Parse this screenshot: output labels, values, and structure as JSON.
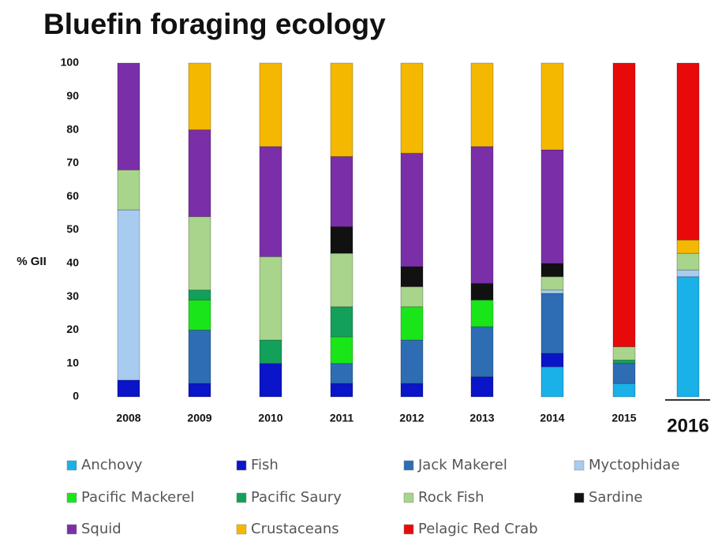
{
  "chart_data": {
    "type": "stacked_bar",
    "title": "Bluefin foraging ecology",
    "y_label": "% GII",
    "categories": [
      "2008",
      "2009",
      "2010",
      "2011",
      "2012",
      "2013",
      "2014",
      "2015",
      "2016"
    ],
    "ylim": [
      0,
      100
    ],
    "yticks": [
      0,
      10,
      20,
      30,
      40,
      50,
      60,
      70,
      80,
      90,
      100
    ],
    "series": [
      {
        "name": "Anchovy",
        "color": "#1ab0e8",
        "values": [
          0,
          0,
          0,
          0,
          0,
          0,
          9,
          4,
          36
        ]
      },
      {
        "name": "Fish",
        "color": "#0a14c8",
        "values": [
          5,
          4,
          10,
          4,
          4,
          6,
          4,
          0,
          0
        ]
      },
      {
        "name": "Jack Makerel",
        "color": "#2e6db4",
        "values": [
          0,
          16,
          0,
          6,
          13,
          15,
          18,
          6,
          0
        ]
      },
      {
        "name": "Myctophidae",
        "color": "#a8ccf0",
        "values": [
          51,
          0,
          0,
          0,
          0,
          0,
          1,
          0,
          2
        ]
      },
      {
        "name": "Pacific Mackerel",
        "color": "#19e619",
        "values": [
          0,
          9,
          0,
          8,
          10,
          8,
          0,
          0,
          0
        ]
      },
      {
        "name": "Pacific Saury",
        "color": "#13a05a",
        "values": [
          0,
          3,
          7,
          9,
          0,
          0,
          0,
          1,
          0
        ]
      },
      {
        "name": "Rock Fish",
        "color": "#a8d48c",
        "values": [
          12,
          22,
          25,
          16,
          6,
          0,
          4,
          4,
          5
        ]
      },
      {
        "name": "Sardine",
        "color": "#111111",
        "values": [
          0,
          0,
          0,
          8,
          6,
          5,
          4,
          0,
          0
        ]
      },
      {
        "name": "Squid",
        "color": "#7a2fa8",
        "values": [
          32,
          26,
          33,
          21,
          34,
          41,
          34,
          0,
          0
        ]
      },
      {
        "name": "Crustaceans",
        "color": "#f5b800",
        "values": [
          0,
          20,
          25,
          28,
          27,
          25,
          26,
          0,
          4
        ]
      },
      {
        "name": "Pelagic Red Crab",
        "color": "#e80a0a",
        "values": [
          0,
          0,
          0,
          0,
          0,
          0,
          0,
          85,
          53
        ]
      }
    ]
  }
}
